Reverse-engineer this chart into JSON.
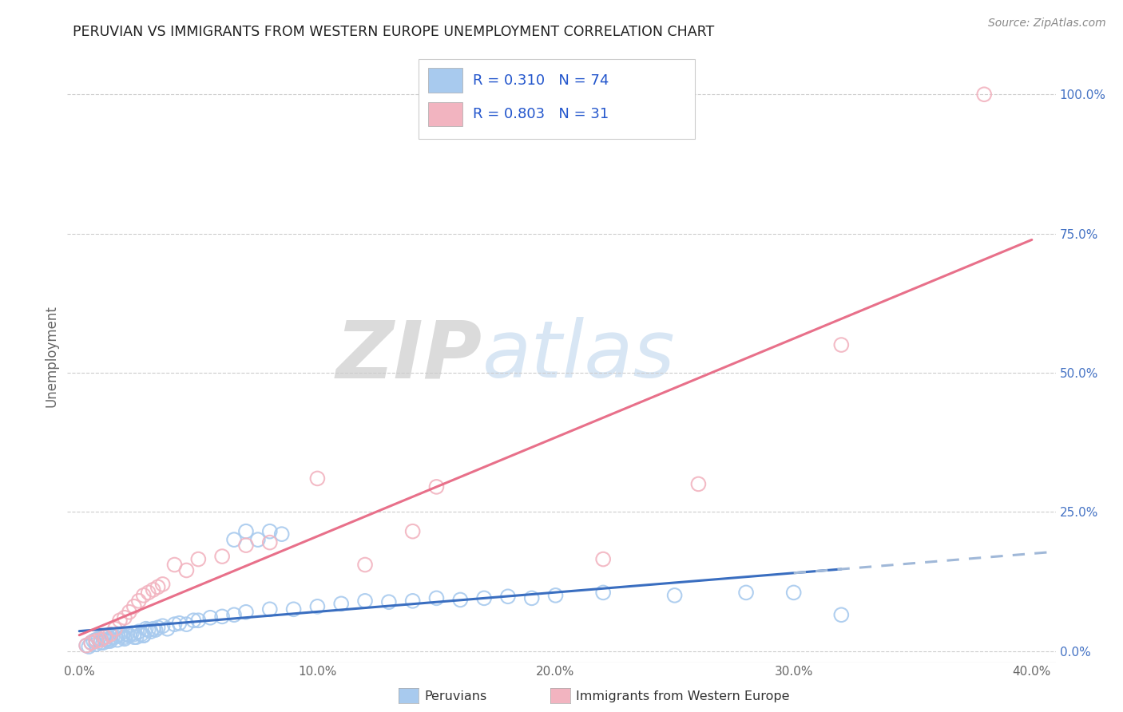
{
  "title": "PERUVIAN VS IMMIGRANTS FROM WESTERN EUROPE UNEMPLOYMENT CORRELATION CHART",
  "source": "Source: ZipAtlas.com",
  "xlabel_ticks": [
    "0.0%",
    "10.0%",
    "20.0%",
    "30.0%",
    "40.0%"
  ],
  "xlabel_vals": [
    0.0,
    0.1,
    0.2,
    0.3,
    0.4
  ],
  "ylabel_left": "Unemployment",
  "ylabel_right_ticks": [
    "0.0%",
    "25.0%",
    "50.0%",
    "75.0%",
    "100.0%"
  ],
  "ylabel_right_vals": [
    0.0,
    0.25,
    0.5,
    0.75,
    1.0
  ],
  "xlim": [
    -0.005,
    0.41
  ],
  "ylim": [
    -0.02,
    1.08
  ],
  "legend_label1": "Peruvians",
  "legend_label2": "Immigrants from Western Europe",
  "R1": "0.310",
  "N1": "74",
  "R2": "0.803",
  "N2": "31",
  "color_blue": "#A8CAEE",
  "color_pink": "#F2B4C0",
  "color_line_blue": "#3A6EC0",
  "color_line_pink": "#E8708A",
  "color_line_blue_dashed": "#A0B8D8",
  "watermark_zip": "ZIP",
  "watermark_atlas": "atlas",
  "blue_scatter_x": [
    0.003,
    0.005,
    0.006,
    0.007,
    0.008,
    0.009,
    0.01,
    0.011,
    0.012,
    0.013,
    0.014,
    0.015,
    0.016,
    0.017,
    0.018,
    0.019,
    0.02,
    0.021,
    0.022,
    0.023,
    0.024,
    0.025,
    0.026,
    0.027,
    0.028,
    0.029,
    0.03,
    0.031,
    0.032,
    0.033,
    0.035,
    0.037,
    0.04,
    0.042,
    0.045,
    0.048,
    0.05,
    0.055,
    0.06,
    0.065,
    0.07,
    0.08,
    0.09,
    0.1,
    0.11,
    0.12,
    0.13,
    0.14,
    0.15,
    0.16,
    0.17,
    0.18,
    0.19,
    0.2,
    0.22,
    0.25,
    0.28,
    0.3,
    0.004,
    0.007,
    0.01,
    0.013,
    0.016,
    0.019,
    0.023,
    0.027,
    0.065,
    0.07,
    0.075,
    0.08,
    0.085,
    0.32
  ],
  "blue_scatter_y": [
    0.01,
    0.015,
    0.018,
    0.02,
    0.022,
    0.015,
    0.025,
    0.02,
    0.018,
    0.022,
    0.025,
    0.025,
    0.028,
    0.03,
    0.028,
    0.025,
    0.03,
    0.028,
    0.032,
    0.03,
    0.025,
    0.035,
    0.03,
    0.028,
    0.04,
    0.038,
    0.035,
    0.04,
    0.038,
    0.042,
    0.045,
    0.04,
    0.048,
    0.05,
    0.048,
    0.055,
    0.055,
    0.06,
    0.062,
    0.065,
    0.07,
    0.075,
    0.075,
    0.08,
    0.085,
    0.09,
    0.088,
    0.09,
    0.095,
    0.092,
    0.095,
    0.098,
    0.095,
    0.1,
    0.105,
    0.1,
    0.105,
    0.105,
    0.008,
    0.012,
    0.015,
    0.018,
    0.02,
    0.022,
    0.025,
    0.028,
    0.2,
    0.215,
    0.2,
    0.215,
    0.21,
    0.065
  ],
  "pink_scatter_x": [
    0.003,
    0.005,
    0.007,
    0.009,
    0.011,
    0.013,
    0.015,
    0.017,
    0.019,
    0.021,
    0.023,
    0.025,
    0.027,
    0.029,
    0.031,
    0.033,
    0.035,
    0.04,
    0.045,
    0.05,
    0.06,
    0.07,
    0.08,
    0.1,
    0.12,
    0.14,
    0.22,
    0.26,
    0.32,
    0.38,
    0.15
  ],
  "pink_scatter_y": [
    0.01,
    0.015,
    0.018,
    0.02,
    0.025,
    0.03,
    0.04,
    0.055,
    0.06,
    0.07,
    0.08,
    0.09,
    0.1,
    0.105,
    0.11,
    0.115,
    0.12,
    0.155,
    0.145,
    0.165,
    0.17,
    0.19,
    0.195,
    0.31,
    0.155,
    0.215,
    0.165,
    0.3,
    0.55,
    1.0,
    0.295
  ]
}
